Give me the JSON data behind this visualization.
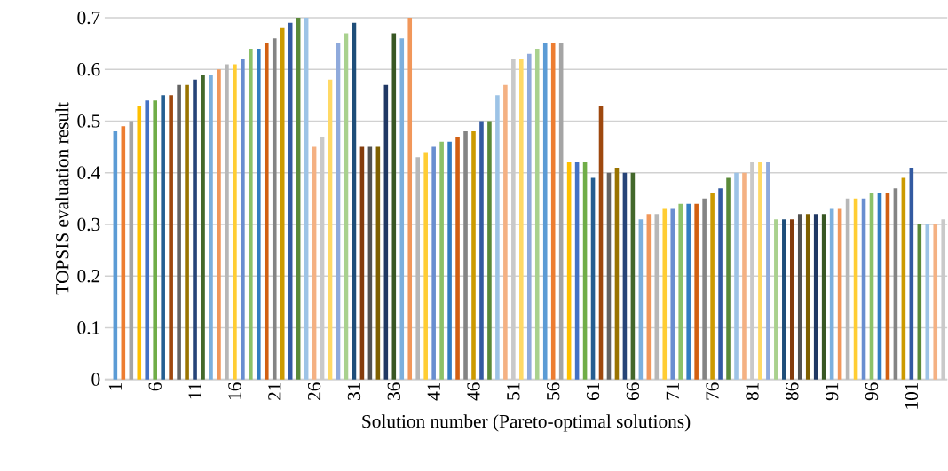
{
  "chart_data": {
    "type": "bar",
    "xlabel": "Solution number (Pareto-optimal solutions)",
    "ylabel": "TOPSIS evaluation result",
    "categories": [
      "1",
      null,
      null,
      null,
      null,
      "6",
      null,
      null,
      null,
      null,
      "11",
      null,
      null,
      null,
      null,
      "16",
      null,
      null,
      null,
      null,
      "21",
      null,
      null,
      null,
      null,
      "26",
      null,
      null,
      null,
      null,
      "31",
      null,
      null,
      null,
      null,
      "36",
      null,
      null,
      null,
      null,
      "41",
      null,
      null,
      null,
      null,
      "46",
      null,
      null,
      null,
      null,
      "51",
      null,
      null,
      null,
      null,
      "56",
      null,
      null,
      null,
      null,
      "61",
      null,
      null,
      null,
      null,
      "66",
      null,
      null,
      null,
      null,
      "71",
      null,
      null,
      null,
      null,
      "76",
      null,
      null,
      null,
      null,
      "81",
      null,
      null,
      null,
      null,
      "86",
      null,
      null,
      null,
      null,
      "91",
      null,
      null,
      null,
      null,
      "96",
      null,
      null,
      null,
      null,
      "101",
      null,
      null,
      null,
      null
    ],
    "values": [
      0.48,
      0.49,
      0.5,
      0.53,
      0.54,
      0.54,
      0.55,
      0.55,
      0.57,
      0.57,
      0.58,
      0.59,
      0.59,
      0.6,
      0.61,
      0.61,
      0.62,
      0.64,
      0.64,
      0.65,
      0.66,
      0.68,
      0.69,
      0.7,
      0.7,
      0.45,
      0.47,
      0.58,
      0.65,
      0.67,
      0.69,
      0.45,
      0.45,
      0.45,
      0.57,
      0.67,
      0.66,
      0.7,
      0.43,
      0.44,
      0.45,
      0.46,
      0.46,
      0.47,
      0.48,
      0.48,
      0.5,
      0.5,
      0.55,
      0.57,
      0.62,
      0.62,
      0.63,
      0.64,
      0.65,
      0.65,
      0.65,
      0.42,
      0.42,
      0.42,
      0.39,
      0.53,
      0.4,
      0.41,
      0.4,
      0.4,
      0.31,
      0.32,
      0.32,
      0.33,
      0.33,
      0.34,
      0.34,
      0.34,
      0.35,
      0.36,
      0.37,
      0.39,
      0.4,
      0.4,
      0.42,
      0.42,
      0.42,
      0.31,
      0.31,
      0.31,
      0.32,
      0.32,
      0.32,
      0.32,
      0.33,
      0.33,
      0.35,
      0.35,
      0.35,
      0.36,
      0.36,
      0.36,
      0.37,
      0.39,
      0.41,
      0.3,
      0.3,
      0.3,
      0.31
    ],
    "colors": [
      "#5b9bd5",
      "#ed7d31",
      "#a5a5a5",
      "#ffc000",
      "#4472c4",
      "#70ad47",
      "#255e91",
      "#9e480e",
      "#636363",
      "#997300",
      "#264478",
      "#43682b",
      "#7cafdd",
      "#f1975a",
      "#b7b7b7",
      "#ffcd33",
      "#698ed0",
      "#8cc168",
      "#327dc2",
      "#d26012",
      "#848484",
      "#cc9a00",
      "#335aa1",
      "#5a8a39",
      "#9dc3e6",
      "#f4b183",
      "#c9c9c9",
      "#ffd966",
      "#8faadc",
      "#a9d18e",
      "#1f4e79",
      "#843c0c",
      "#525252",
      "#7f6000",
      "#203864",
      "#385723",
      "#7cafdd",
      "#f1975a",
      "#b7b7b7",
      "#ffcd33",
      "#698ed0",
      "#8cc168",
      "#327dc2",
      "#d26012",
      "#848484",
      "#cc9a00",
      "#335aa1",
      "#5a8a39",
      "#9dc3e6",
      "#f4b183",
      "#c9c9c9",
      "#ffd966",
      "#8faadc",
      "#a9d18e",
      "#5b9bd5",
      "#ed7d31",
      "#a5a5a5",
      "#ffc000",
      "#4472c4",
      "#70ad47",
      "#255e91",
      "#9e480e",
      "#636363",
      "#997300",
      "#264478",
      "#43682b",
      "#7cafdd",
      "#f1975a",
      "#b7b7b7",
      "#ffcd33",
      "#698ed0",
      "#8cc168",
      "#327dc2",
      "#d26012",
      "#848484",
      "#cc9a00",
      "#335aa1",
      "#5a8a39",
      "#9dc3e6",
      "#f4b183",
      "#c9c9c9",
      "#ffd966",
      "#8faadc",
      "#a9d18e",
      "#1f4e79",
      "#843c0c",
      "#525252",
      "#7f6000",
      "#203864",
      "#385723",
      "#7cafdd",
      "#f1975a",
      "#b7b7b7",
      "#ffcd33",
      "#698ed0",
      "#8cc168",
      "#327dc2",
      "#d26012",
      "#848484",
      "#cc9a00",
      "#335aa1",
      "#5a8a39",
      "#9dc3e6",
      "#f4b183",
      "#c9c9c9"
    ],
    "ylim": [
      0,
      0.7
    ],
    "yticks": [
      0,
      0.1,
      0.2,
      0.3,
      0.4,
      0.5,
      0.6,
      0.7
    ],
    "grid": "y"
  }
}
